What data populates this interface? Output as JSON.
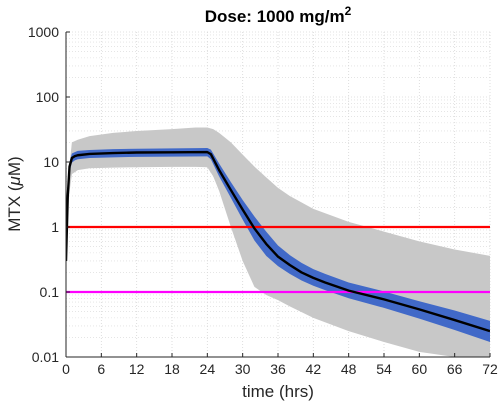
{
  "chart_data": {
    "type": "line",
    "title": "Dose: 1000 mg/m",
    "title_superscript": "2",
    "xlabel": "time (hrs)",
    "ylabel_prefix": "MTX (",
    "ylabel_mu": "μ",
    "ylabel_suffix": "M)",
    "xlim": [
      0,
      72
    ],
    "ylim": [
      0.01,
      1000
    ],
    "yscale": "log",
    "grid": "on (major and minor, dotted)",
    "x_ticks": [
      0,
      6,
      12,
      18,
      24,
      30,
      36,
      42,
      48,
      54,
      60,
      66,
      72
    ],
    "x_tick_labels": [
      "0",
      "6",
      "12",
      "18",
      "24",
      "30",
      "36",
      "42",
      "48",
      "54",
      "60",
      "66",
      "72"
    ],
    "y_ticks": [
      0.01,
      0.1,
      1,
      10,
      100,
      1000
    ],
    "y_tick_labels": [
      "0.01",
      "0.1",
      "1",
      "10",
      "100",
      "1000"
    ],
    "colors": {
      "median": "#000000",
      "inner_band": "#4169c8",
      "outer_band": "#c8c8c8",
      "threshold_high": "#ff0000",
      "threshold_low": "#ff00ff",
      "axes": "#262626",
      "grid": "#d6d6d6"
    },
    "median": {
      "x": [
        0,
        0.3,
        0.6,
        1,
        1.5,
        2,
        4,
        8,
        12,
        18,
        24,
        24.6,
        26,
        28,
        30,
        32,
        34,
        36,
        38,
        40,
        42,
        44,
        48,
        54,
        60,
        66,
        72
      ],
      "y": [
        0.3,
        3,
        8.5,
        11.5,
        12.3,
        12.7,
        13.3,
        13.7,
        14,
        14.1,
        14.2,
        13.2,
        7.5,
        3.7,
        1.85,
        0.95,
        0.55,
        0.35,
        0.26,
        0.2,
        0.165,
        0.14,
        0.105,
        0.077,
        0.054,
        0.037,
        0.025
      ]
    },
    "inner_band": {
      "x": [
        0,
        0.3,
        0.6,
        1,
        1.5,
        2,
        4,
        8,
        12,
        18,
        24,
        24.6,
        26,
        28,
        30,
        32,
        34,
        36,
        38,
        40,
        42,
        44,
        48,
        54,
        60,
        66,
        72
      ],
      "lower": [
        0.25,
        2.5,
        7,
        9.8,
        10.6,
        11,
        11.5,
        11.8,
        12,
        12.1,
        12.2,
        11,
        6,
        2.8,
        1.3,
        0.62,
        0.36,
        0.25,
        0.19,
        0.15,
        0.125,
        0.107,
        0.08,
        0.057,
        0.039,
        0.026,
        0.017
      ],
      "upper": [
        0.4,
        3.6,
        10,
        13.5,
        14.2,
        14.8,
        15.3,
        15.8,
        16,
        16.2,
        16.4,
        15.5,
        9.5,
        4.9,
        2.6,
        1.45,
        0.85,
        0.52,
        0.37,
        0.28,
        0.225,
        0.19,
        0.14,
        0.102,
        0.072,
        0.052,
        0.036
      ]
    },
    "outer_band": {
      "x": [
        0,
        0.3,
        1,
        2,
        4,
        8,
        12,
        18,
        22,
        24,
        25,
        26,
        28,
        30,
        32,
        34,
        36,
        38,
        42,
        48,
        54,
        60,
        66,
        72
      ],
      "lower": [
        0.3,
        2.2,
        6.5,
        7.5,
        8,
        8.2,
        8.3,
        8.4,
        8.4,
        8.3,
        6,
        3.6,
        1,
        0.3,
        0.12,
        0.09,
        0.075,
        0.06,
        0.04,
        0.025,
        0.017,
        0.012,
        0.01,
        0.01
      ],
      "upper": [
        0.35,
        5,
        20,
        22,
        25,
        28,
        30,
        32,
        34,
        34,
        32,
        28,
        20,
        13,
        8.5,
        5.8,
        4,
        3,
        1.9,
        1.2,
        0.85,
        0.6,
        0.45,
        0.36
      ]
    },
    "threshold_lines": [
      {
        "y": 1,
        "color": "#ff0000"
      },
      {
        "y": 0.1,
        "color": "#ff00ff"
      }
    ]
  }
}
